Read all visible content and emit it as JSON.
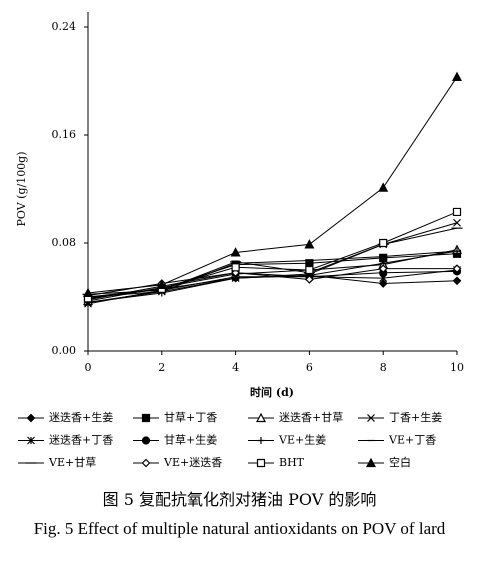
{
  "chart_data": {
    "type": "line",
    "x_label": "时间 (d)",
    "y_label": "POV (g/100g)",
    "x": [
      0,
      2,
      4,
      6,
      8,
      10
    ],
    "xlim": [
      0,
      10
    ],
    "xticks": [
      0,
      2,
      4,
      6,
      8,
      10
    ],
    "ylim": [
      0,
      0.24
    ],
    "yticks": [
      {
        "value": 0,
        "label": "0.00"
      },
      0.08,
      0.16,
      0.24
    ],
    "series": [
      {
        "name": "迷迭香+生姜",
        "color": "#000000",
        "marker": "diamond",
        "values": [
          0.04,
          0.046,
          0.054,
          0.056,
          0.05,
          0.052
        ]
      },
      {
        "name": "甘草+丁香",
        "color": "#000000",
        "marker": "square",
        "values": [
          0.039,
          0.046,
          0.064,
          0.065,
          0.069,
          0.072
        ]
      },
      {
        "name": "迷迭香+甘草",
        "color": "#000000",
        "marker": "triangle-open",
        "values": [
          0.037,
          0.047,
          0.057,
          0.06,
          0.064,
          0.075
        ]
      },
      {
        "name": "丁香+生姜",
        "color": "#000000",
        "marker": "x",
        "values": [
          0.036,
          0.044,
          0.054,
          0.057,
          0.079,
          0.095
        ]
      },
      {
        "name": "迷迭香+丁香",
        "color": "#000000",
        "marker": "asterisk",
        "values": [
          0.035,
          0.045,
          0.055,
          0.055,
          0.054,
          0.06
        ]
      },
      {
        "name": "甘草+生姜",
        "color": "#000000",
        "marker": "circle",
        "values": [
          0.038,
          0.048,
          0.058,
          0.055,
          0.058,
          0.059
        ]
      },
      {
        "name": "VE+生姜",
        "color": "#000000",
        "marker": "plus",
        "values": [
          0.036,
          0.043,
          0.054,
          0.056,
          0.065,
          0.074
        ]
      },
      {
        "name": "VE+丁香",
        "color": "#000000",
        "marker": "dash",
        "values": [
          0.04,
          0.044,
          0.065,
          0.067,
          0.07,
          0.074
        ]
      },
      {
        "name": "VE+甘草",
        "color": "#000000",
        "marker": "long-dash",
        "values": [
          0.042,
          0.045,
          0.066,
          0.058,
          0.079,
          0.091
        ]
      },
      {
        "name": "VE+迷迭香",
        "color": "#000000",
        "marker": "diamond-open",
        "values": [
          0.041,
          0.05,
          0.058,
          0.053,
          0.061,
          0.061
        ]
      },
      {
        "name": "BHT",
        "color": "#000000",
        "marker": "square-open",
        "values": [
          0.039,
          0.046,
          0.062,
          0.06,
          0.08,
          0.103
        ]
      },
      {
        "name": "空白",
        "color": "#000000",
        "marker": "triangle",
        "values": [
          0.043,
          0.049,
          0.073,
          0.079,
          0.121,
          0.203
        ]
      }
    ],
    "caption_cn": "图 5   复配抗氧化剂对猪油 POV 的影响",
    "caption_en": "Fig. 5   Effect of multiple natural antioxidants on POV of lard"
  }
}
